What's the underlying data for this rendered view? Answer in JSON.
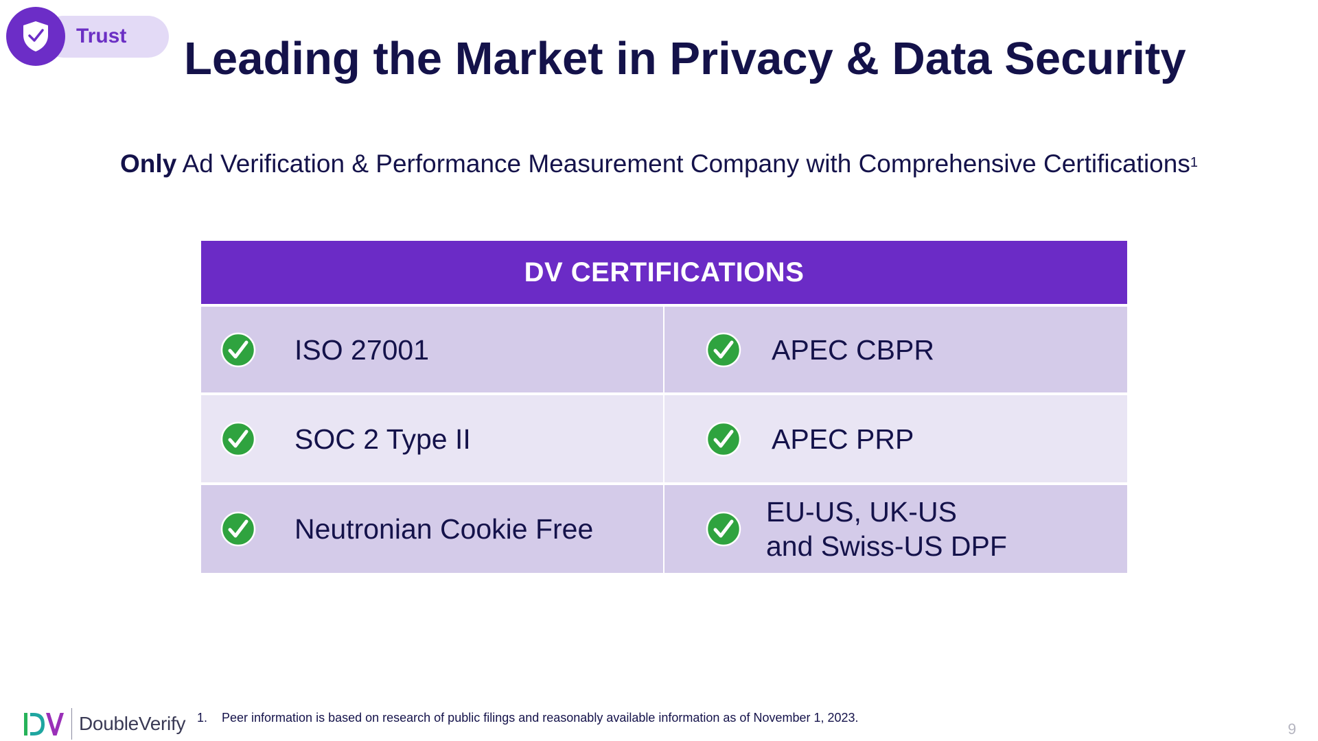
{
  "badge": {
    "label": "Trust",
    "icon": "shield-check-icon",
    "color": "#6c2dc7"
  },
  "title": "Leading the Market in Privacy & Data Security",
  "subtitle": {
    "bold_lead": "Only",
    "rest": " Ad Verification & Performance Measurement Company with Comprehensive Certifications",
    "footnote_ref": "1"
  },
  "certifications": {
    "header": "DV CERTIFICATIONS",
    "header_color": "#6b2bc6",
    "check_icon": "green-check-circle-icon",
    "rows": [
      {
        "left": "ISO 27001",
        "right": "APEC CBPR"
      },
      {
        "left": "SOC 2 Type II",
        "right": "APEC PRP"
      },
      {
        "left": "Neutronian Cookie Free",
        "right": "EU-US, UK-US\nand Swiss-US DPF"
      }
    ]
  },
  "footer": {
    "logo_text": "DoubleVerify",
    "footnote_number": "1.",
    "footnote_text": "Peer information is based on research of public filings and reasonably available information as of November 1, 2023.",
    "page_number": "9"
  }
}
